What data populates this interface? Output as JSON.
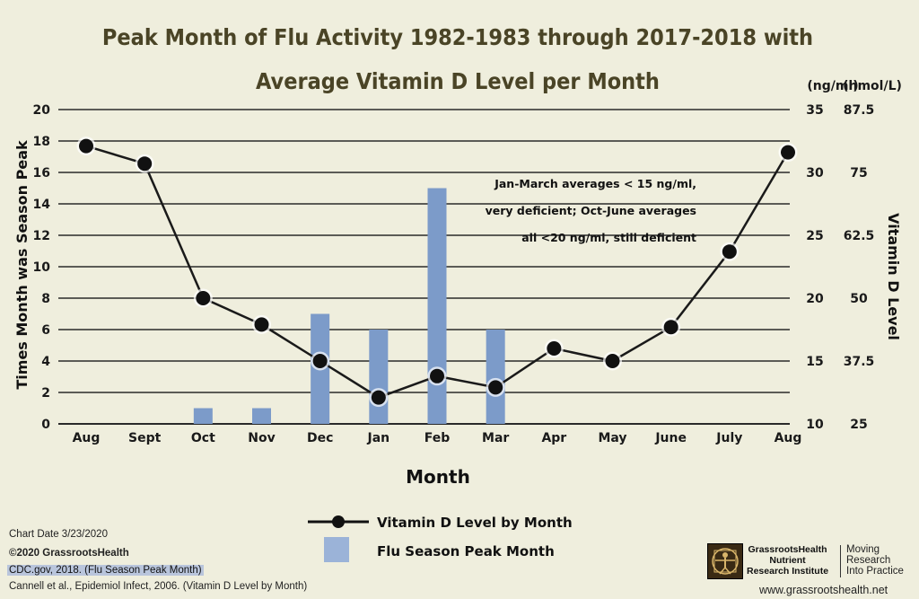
{
  "chart_data": {
    "type": "bar+line",
    "title_line1": "Peak Month of Flu Activity 1982-1983 through 2017-2018 with",
    "title_line2": "Average Vitamin D Level per Month",
    "xlabel": "Month",
    "ylabel_left": "Times Month was Season Peak",
    "ylabel_right": "Vitamin D Level",
    "right_unit_1": "(ng/ml)",
    "right_unit_2": "(nmol/L)",
    "categories": [
      "Aug",
      "Sept",
      "Oct",
      "Nov",
      "Dec",
      "Jan",
      "Feb",
      "Mar",
      "Apr",
      "May",
      "June",
      "July",
      "Aug"
    ],
    "left_ylim": [
      0,
      20
    ],
    "left_ticks": [
      "0",
      "2",
      "4",
      "6",
      "8",
      "10",
      "12",
      "14",
      "16",
      "18",
      "20"
    ],
    "right_ylim_ngml": [
      10,
      35
    ],
    "right_ticks_ngml": [
      "10",
      "15",
      "20",
      "25",
      "30",
      "35"
    ],
    "right_ticks_nmol": [
      "25",
      "37.5",
      "50",
      "62.5",
      "75",
      "87.5"
    ],
    "grid": true,
    "series": [
      {
        "name": "Flu Season Peak Month",
        "kind": "bar",
        "axis": "left",
        "color": "#7c9bc9",
        "values": [
          0,
          0,
          1,
          1,
          7,
          6,
          15,
          6,
          0,
          0,
          0,
          0,
          0
        ]
      },
      {
        "name": "Vitamin D Level by Month",
        "kind": "line",
        "axis": "right",
        "color": "#111111",
        "values": [
          32.1,
          30.7,
          20.0,
          17.9,
          15.0,
          12.1,
          13.8,
          12.9,
          16.0,
          15.0,
          17.7,
          23.7,
          31.6
        ]
      }
    ],
    "annotation": [
      "Jan-March averages < 15 ng/ml,",
      "very deficient; Oct-June averages",
      "all <20 ng/ml, still deficient"
    ],
    "legend_position": "bottom-center"
  },
  "footer": {
    "chart_date": "Chart Date 3/23/2020",
    "copyright": "©2020 GrassrootsHealth",
    "source1": "CDC.gov, 2018.  (Flu Season Peak Month)",
    "source2": "Cannell et al., Epidemiol Infect, 2006.  (Vitamin D Level by Month)",
    "logo_line1": "GrassrootsHealth",
    "logo_line2": "Nutrient",
    "logo_line3": "Research Institute",
    "tagline1": "Moving",
    "tagline2": "Research",
    "tagline3": "Into Practice",
    "website": "www.grassrootshealth.net"
  }
}
